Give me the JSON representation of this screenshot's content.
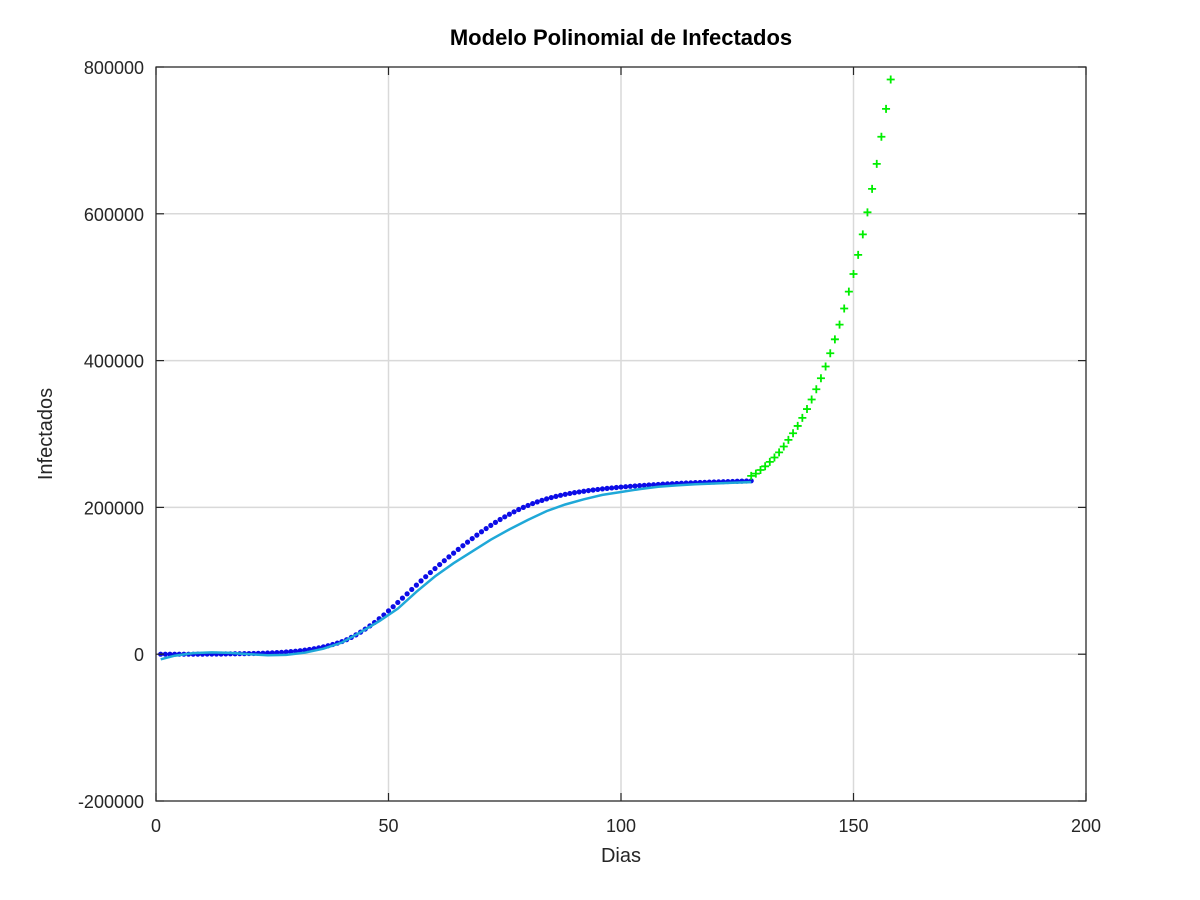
{
  "chart_data": {
    "type": "scatter",
    "title": "Modelo Polinomial de Infectados",
    "xlabel": "Dias",
    "ylabel": "Infectados",
    "xlim": [
      0,
      200
    ],
    "ylim": [
      -200000,
      800000
    ],
    "xticks": [
      0,
      50,
      100,
      150,
      200
    ],
    "yticks": [
      -200000,
      0,
      200000,
      400000,
      600000,
      800000
    ],
    "xtick_labels": [
      "0",
      "50",
      "100",
      "150",
      "200"
    ],
    "ytick_labels": [
      "-200000",
      "0",
      "200000",
      "400000",
      "600000",
      "800000"
    ],
    "grid": true,
    "legend": "none",
    "colors": {
      "observed": "#0000e6",
      "fit": "#1fa8d8",
      "forecast": "#00ee00",
      "grid": "#d9d9d9",
      "axis": "#262626"
    },
    "series": [
      {
        "style": "dots",
        "color": "#0000e6",
        "x": [
          1,
          2,
          3,
          4,
          5,
          6,
          7,
          8,
          9,
          10,
          11,
          12,
          13,
          14,
          15,
          16,
          17,
          18,
          19,
          20,
          21,
          22,
          23,
          24,
          25,
          26,
          27,
          28,
          29,
          30,
          31,
          32,
          33,
          34,
          35,
          36,
          37,
          38,
          39,
          40,
          41,
          42,
          43,
          44,
          45,
          46,
          47,
          48,
          49,
          50,
          51,
          52,
          53,
          54,
          55,
          56,
          57,
          58,
          59,
          60,
          61,
          62,
          63,
          64,
          65,
          66,
          67,
          68,
          69,
          70,
          71,
          72,
          73,
          74,
          75,
          76,
          77,
          78,
          79,
          80,
          81,
          82,
          83,
          84,
          85,
          86,
          87,
          88,
          89,
          90,
          91,
          92,
          93,
          94,
          95,
          96,
          97,
          98,
          99,
          100,
          101,
          102,
          103,
          104,
          105,
          106,
          107,
          108,
          109,
          110,
          111,
          112,
          113,
          114,
          115,
          116,
          117,
          118,
          119,
          120,
          121,
          122,
          123,
          124,
          125,
          126,
          127,
          128
        ],
        "y": [
          0,
          0,
          0,
          0,
          0,
          0,
          0,
          0,
          100,
          100,
          200,
          200,
          300,
          300,
          400,
          500,
          600,
          700,
          800,
          900,
          1000,
          1200,
          1400,
          1600,
          1900,
          2200,
          2600,
          3000,
          3500,
          4100,
          4800,
          5600,
          6500,
          7500,
          8700,
          10000,
          11500,
          13200,
          15100,
          17200,
          19800,
          22900,
          26300,
          30100,
          34200,
          38600,
          43300,
          48300,
          53500,
          59000,
          64700,
          70500,
          76400,
          82300,
          88200,
          94100,
          99900,
          105600,
          111200,
          116700,
          122100,
          127400,
          132600,
          137700,
          142800,
          147800,
          152700,
          157500,
          162200,
          166800,
          171200,
          175500,
          179600,
          183500,
          187200,
          190700,
          194000,
          197100,
          200000,
          202700,
          205200,
          207500,
          209600,
          211600,
          213400,
          215000,
          216500,
          217800,
          219000,
          220100,
          221100,
          222000,
          222900,
          223700,
          224500,
          225200,
          225900,
          226500,
          227100,
          227700,
          228200,
          228700,
          229200,
          229700,
          230100,
          230500,
          230900,
          231300,
          231700,
          232000,
          232300,
          232600,
          232900,
          233200,
          233500,
          233800,
          234000,
          234200,
          234400,
          234600,
          234800,
          235000,
          235200,
          235400,
          235600,
          235800,
          236000,
          236200
        ]
      },
      {
        "style": "line",
        "color": "#1fa8d8",
        "x": [
          1,
          4,
          8,
          12,
          16,
          20,
          24,
          28,
          32,
          36,
          40,
          44,
          48,
          52,
          56,
          60,
          64,
          68,
          72,
          76,
          80,
          84,
          88,
          92,
          96,
          100,
          104,
          108,
          112,
          116,
          120,
          124,
          128
        ],
        "y": [
          -7000,
          -2000,
          1500,
          2500,
          1800,
          0,
          -1500,
          -1000,
          2000,
          7500,
          16000,
          30000,
          45000,
          62000,
          85000,
          106000,
          124000,
          140000,
          156000,
          170000,
          183000,
          195000,
          204000,
          211000,
          217000,
          221000,
          225000,
          228000,
          230000,
          231500,
          232500,
          233500,
          234500
        ]
      },
      {
        "style": "plus",
        "color": "#00ee00",
        "x": [
          128,
          129,
          130,
          131,
          132,
          133,
          134,
          135,
          136,
          137,
          138,
          139,
          140,
          141,
          142,
          143,
          144,
          145,
          146,
          147,
          148,
          149,
          150,
          151,
          152,
          153,
          154,
          155,
          156,
          157,
          158
        ],
        "y": [
          243000,
          246000,
          251000,
          256000,
          262000,
          268000,
          275000,
          283000,
          292000,
          301000,
          311000,
          322000,
          334000,
          347000,
          361000,
          376000,
          392000,
          410000,
          429000,
          449000,
          471000,
          494000,
          518000,
          544000,
          572000,
          602000,
          634000,
          668000,
          705000,
          743000,
          783000
        ]
      }
    ]
  }
}
